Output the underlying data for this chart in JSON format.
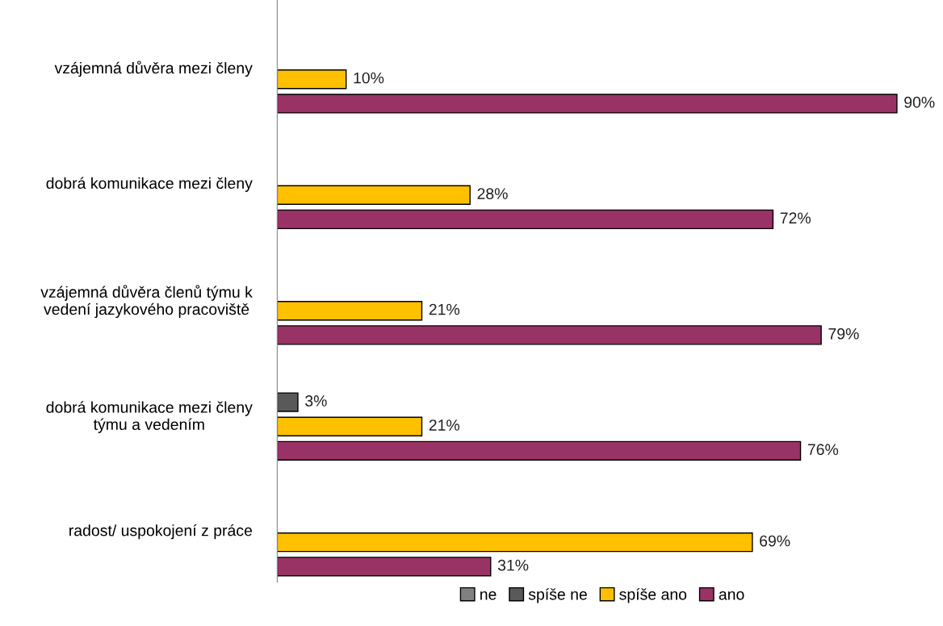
{
  "chart_data": {
    "type": "bar",
    "orientation": "horizontal",
    "categories": [
      "vzájemná důvěra mezi členy",
      "dobrá komunikace mezi členy",
      "vzájemná důvěra členů týmu k\nvedení jazykového pracoviště",
      "dobrá komunikace mezi členy\ntýmu a vedením",
      "radost/ uspokojení z práce"
    ],
    "series": [
      {
        "name": "ne",
        "color": "#808080",
        "values": [
          null,
          null,
          null,
          null,
          null
        ]
      },
      {
        "name": "spíše ne",
        "color": "#595959",
        "values": [
          null,
          null,
          null,
          3,
          null
        ],
        "value_labels": [
          null,
          null,
          null,
          "3%",
          null
        ]
      },
      {
        "name": "spíše ano",
        "color": "#ffc000",
        "values": [
          10,
          28,
          21,
          21,
          69
        ],
        "value_labels": [
          "10%",
          "28%",
          "21%",
          "21%",
          "69%"
        ]
      },
      {
        "name": "ano",
        "color": "#993366",
        "values": [
          90,
          72,
          79,
          76,
          31
        ],
        "value_labels": [
          "90%",
          "72%",
          "79%",
          "76%",
          "31%"
        ]
      }
    ],
    "legend": "bottom",
    "grid": false
  }
}
